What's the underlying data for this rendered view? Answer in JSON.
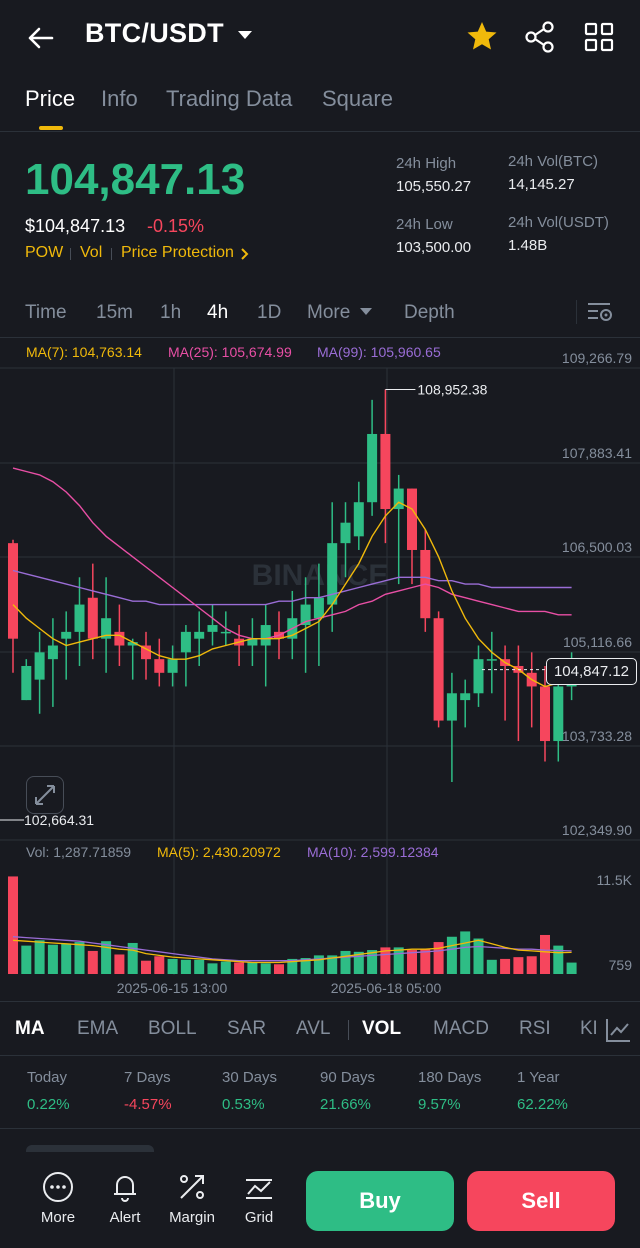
{
  "header": {
    "title": "BTC/USDT",
    "icons": [
      "back-arrow-icon",
      "caret-down-icon",
      "star-icon",
      "share-icon",
      "grid-icon"
    ],
    "star_color": "#f0b90b"
  },
  "tabs": [
    "Price",
    "Info",
    "Trading Data",
    "Square"
  ],
  "price": {
    "last": "104,847.13",
    "usd": "$104,847.13",
    "change": "-0.15%",
    "tags": [
      "POW",
      "Vol",
      "Price Protection"
    ],
    "high_label": "24h High",
    "high": "105,550.27",
    "low_label": "24h Low",
    "low": "103,500.00",
    "vol_btc_label": "24h Vol(BTC)",
    "vol_btc": "14,145.27",
    "vol_usdt_label": "24h Vol(USDT)",
    "vol_usdt": "1.48B"
  },
  "timeframes": [
    "Time",
    "15m",
    "1h",
    "4h",
    "1D",
    "More",
    "Depth"
  ],
  "active_timeframe": "4h",
  "chart": {
    "ma_legend": {
      "ma7": "MA(7): 104,763.14",
      "ma25": "MA(25): 105,674.99",
      "ma99": "MA(99): 105,960.65"
    },
    "y_ticks": [
      "109,266.79",
      "107,883.41",
      "106,500.03",
      "105,116.66",
      "103,733.28",
      "102,349.90"
    ],
    "current_price_tag": "104,847.12",
    "high_marker": "108,952.38",
    "low_marker": "102,664.31",
    "watermark": "BINANCE",
    "vol_legend": {
      "vol": "Vol: 1,287.71859",
      "ma5": "MA(5): 2,430.20972",
      "ma10": "MA(10): 2,599.12384"
    },
    "vol_ticks": [
      "11.5K",
      "759"
    ],
    "x_ticks": [
      "2025-06-15 13:00",
      "2025-06-18 05:00"
    ],
    "colors": {
      "up": "#2ebd85",
      "down": "#f6465d",
      "ma7": "#f0b90b",
      "ma25": "#e84fa5",
      "ma99": "#9a6dd6"
    }
  },
  "indicators": [
    "MA",
    "EMA",
    "BOLL",
    "SAR",
    "AVL",
    "VOL",
    "MACD",
    "RSI",
    "KD"
  ],
  "performance": [
    {
      "label": "Today",
      "value": "0.22%"
    },
    {
      "label": "7 Days",
      "value": "-4.57%"
    },
    {
      "label": "30 Days",
      "value": "0.53%"
    },
    {
      "label": "90 Days",
      "value": "21.66%"
    },
    {
      "label": "180 Days",
      "value": "9.57%"
    },
    {
      "label": "1 Year",
      "value": "62.22%"
    }
  ],
  "bottom_bar": {
    "items": [
      "More",
      "Alert",
      "Margin",
      "Grid"
    ],
    "buy": "Buy",
    "sell": "Sell"
  }
}
